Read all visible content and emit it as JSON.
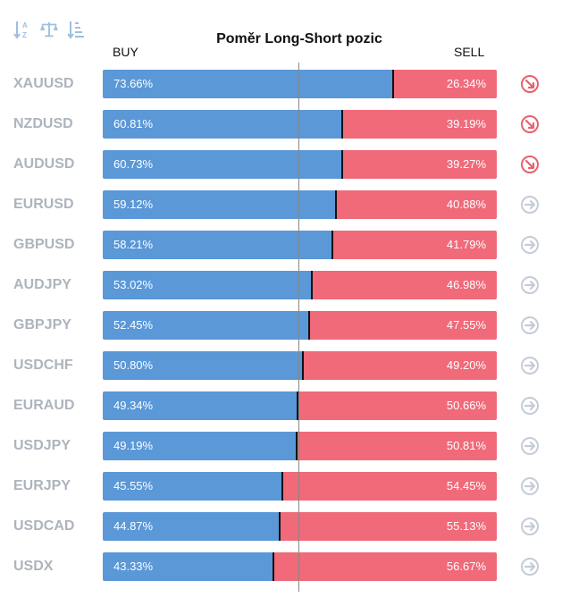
{
  "toolbar": {
    "buttons": [
      {
        "icon": "sort-alpha-icon"
      },
      {
        "icon": "balance-scale-icon"
      },
      {
        "icon": "sort-amount-icon"
      }
    ]
  },
  "colors": {
    "buy": "#5a98d8",
    "sell": "#f06a79",
    "signal_down": "#e8606e",
    "signal_neutral": "#c5ccd6",
    "symbol": "#aeb4bd"
  },
  "chart_data": {
    "type": "bar",
    "title": "Poměr Long-Short pozic",
    "buy_label": "BUY",
    "sell_label": "SELL",
    "categories": [
      "XAUUSD",
      "NZDUSD",
      "AUDUSD",
      "EURUSD",
      "GBPUSD",
      "AUDJPY",
      "GBPJPY",
      "USDCHF",
      "EURAUD",
      "USDJPY",
      "EURJPY",
      "USDCAD",
      "USDX"
    ],
    "series": [
      {
        "name": "BUY",
        "values": [
          73.66,
          60.81,
          60.73,
          59.12,
          58.21,
          53.02,
          52.45,
          50.8,
          49.34,
          49.19,
          45.55,
          44.87,
          43.33
        ]
      },
      {
        "name": "SELL",
        "values": [
          26.34,
          39.19,
          39.27,
          40.88,
          41.79,
          46.98,
          47.55,
          49.2,
          50.66,
          50.81,
          54.45,
          55.13,
          56.67
        ]
      }
    ],
    "value_labels": {
      "buy": [
        "73.66%",
        "60.81%",
        "60.73%",
        "59.12%",
        "58.21%",
        "53.02%",
        "52.45%",
        "50.80%",
        "49.34%",
        "49.19%",
        "45.55%",
        "44.87%",
        "43.33%"
      ],
      "sell": [
        "26.34%",
        "39.19%",
        "39.27%",
        "40.88%",
        "41.79%",
        "46.98%",
        "47.55%",
        "49.20%",
        "50.66%",
        "50.81%",
        "54.45%",
        "55.13%",
        "56.67%"
      ]
    },
    "signals": [
      "down",
      "down",
      "down",
      "neutral",
      "neutral",
      "neutral",
      "neutral",
      "neutral",
      "neutral",
      "neutral",
      "neutral",
      "neutral",
      "neutral"
    ],
    "stacked": true,
    "ylim": [
      0,
      100
    ]
  }
}
